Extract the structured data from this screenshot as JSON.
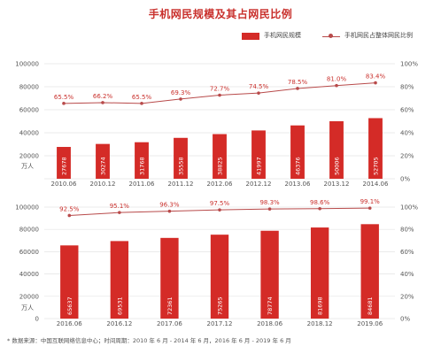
{
  "title": "手机网民规模及其占网民比例",
  "legend": {
    "bar_label": "手机网民规模",
    "line_label": "手机网民占整体网民比例"
  },
  "footnote": "* 数据来源：中国互联网络信息中心；时间周期：2010 年 6 月 - 2014 年 6 月，2016 年 6 月 - 2019 年 6 月",
  "colors": {
    "bar": "#d42b27",
    "line": "#b84a4a",
    "label": "#c9302c",
    "grid": "#e4e4e4"
  },
  "chart_data": [
    {
      "type": "bar",
      "categories": [
        "2010.06",
        "2010.12",
        "2011.06",
        "2011.12",
        "2012.06",
        "2012.12",
        "2013.06",
        "2013.12",
        "2014.06"
      ],
      "series": [
        {
          "name": "手机网民规模",
          "type": "bar",
          "axis": "left",
          "values": [
            27678,
            30274,
            31768,
            35558,
            38825,
            41997,
            46376,
            50006,
            52705
          ]
        },
        {
          "name": "手机网民占整体网民比例",
          "type": "line",
          "axis": "right",
          "values": [
            65.5,
            66.2,
            65.5,
            69.3,
            72.7,
            74.5,
            78.5,
            81.0,
            83.4
          ],
          "labels": [
            "65.5%",
            "66.2%",
            "65.5%",
            "69.3%",
            "72.7%",
            "74.5%",
            "78.5%",
            "81.0%",
            "83.4%"
          ]
        }
      ],
      "y_unit": "万人",
      "ylim": [
        0,
        100000
      ],
      "yticks": [
        "100000",
        "80000",
        "60000",
        "40000",
        "20000"
      ],
      "y2lim": [
        0,
        100
      ],
      "y2ticks": [
        "100%",
        "80%",
        "60%",
        "40%",
        "20%",
        "0%"
      ]
    },
    {
      "type": "bar",
      "categories": [
        "2016.06",
        "2016.12",
        "2017.06",
        "2017.12",
        "2018.06",
        "2018.12",
        "2019.06"
      ],
      "series": [
        {
          "name": "手机网民规模",
          "type": "bar",
          "axis": "left",
          "values": [
            65637,
            69531,
            72361,
            75265,
            78774,
            81698,
            84681
          ]
        },
        {
          "name": "手机网民占整体网民比例",
          "type": "line",
          "axis": "right",
          "values": [
            92.5,
            95.1,
            96.3,
            97.5,
            98.3,
            98.6,
            99.1
          ],
          "labels": [
            "92.5%",
            "95.1%",
            "96.3%",
            "97.5%",
            "98.3%",
            "98.6%",
            "99.1%"
          ]
        }
      ],
      "y_unit": "万人",
      "ylim": [
        0,
        100000
      ],
      "yticks": [
        "100000",
        "80000",
        "60000",
        "40000",
        "20000",
        "0"
      ],
      "y2lim": [
        0,
        100
      ],
      "y2ticks": [
        "100%",
        "80%",
        "60%",
        "40%",
        "20%",
        "0%"
      ]
    }
  ]
}
